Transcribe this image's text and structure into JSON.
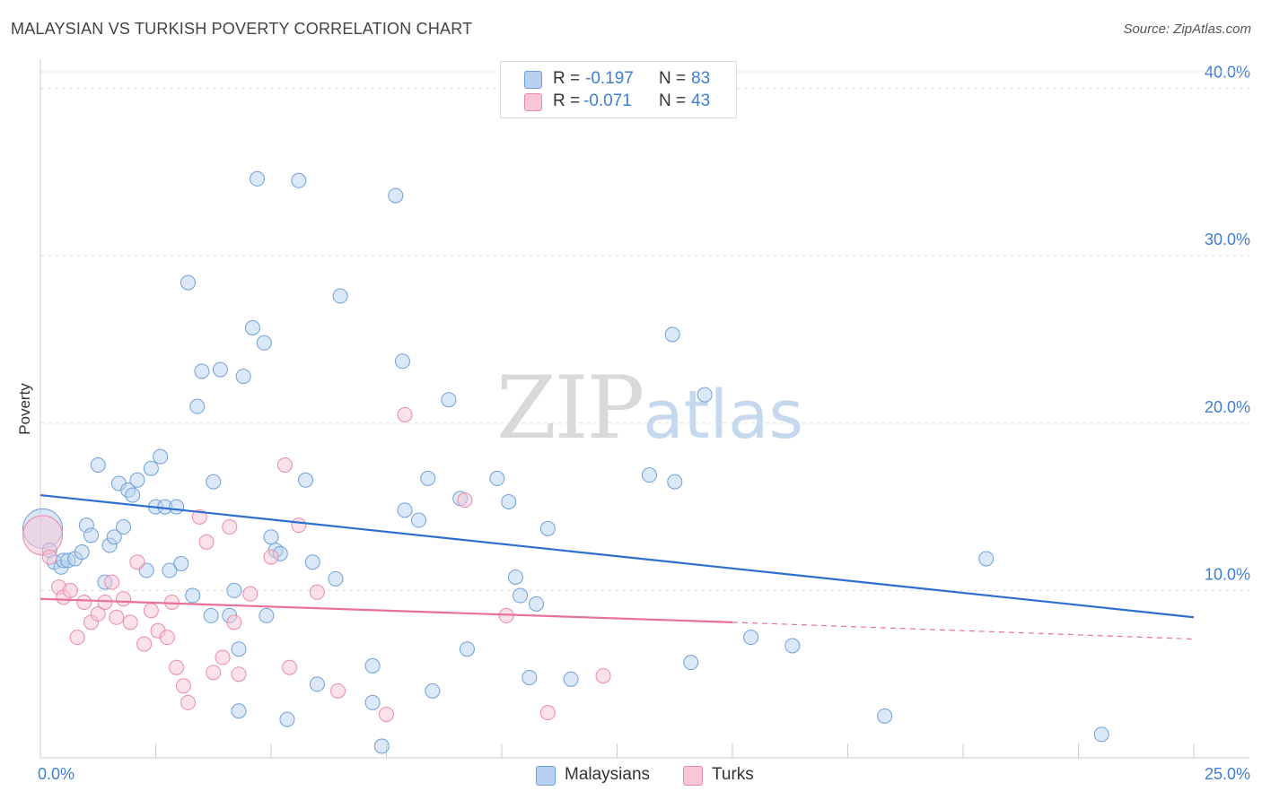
{
  "header": {
    "title": "MALAYSIAN VS TURKISH POVERTY CORRELATION CHART",
    "source": "Source: ZipAtlas.com"
  },
  "watermark": {
    "zip": "ZIP",
    "atlas": "atlas"
  },
  "legend": {
    "rows": [
      {
        "r_label": "R =",
        "r_value": "-0.197",
        "n_label": "N =",
        "n_value": "83",
        "series": "Malaysians"
      },
      {
        "r_label": "R =",
        "r_value": "-0.071",
        "n_label": "N =",
        "n_value": "43",
        "series": "Turks"
      }
    ]
  },
  "bottom_legend": {
    "items": [
      "Malaysians",
      "Turks"
    ]
  },
  "colors": {
    "blue_fill": "#b8d1f0",
    "blue_edge": "#6f9fd8",
    "blue_line": "#2d6fd0",
    "pink_fill": "#f8c6d6",
    "pink_edge": "#eb8aa8",
    "pink_line": "#e8709b",
    "grid": "#dddddd",
    "tick_text": "#3f7ed4"
  },
  "chart_data": {
    "type": "scatter",
    "title": "MALAYSIAN VS TURKISH POVERTY CORRELATION CHART",
    "xlabel": "",
    "ylabel": "Poverty",
    "xlim": [
      0,
      25
    ],
    "ylim": [
      0,
      41
    ],
    "x_tick_labels": [
      {
        "value": 0,
        "label": "0.0%"
      },
      {
        "value": 25,
        "label": "25.0%"
      }
    ],
    "y_tick_labels": [
      {
        "value": 10,
        "label": "10.0%"
      },
      {
        "value": 20,
        "label": "20.0%"
      },
      {
        "value": 30,
        "label": "30.0%"
      },
      {
        "value": 40,
        "label": "40.0%"
      }
    ],
    "series": [
      {
        "name": "Malaysians",
        "color": "#6f9fd8",
        "trend": {
          "x0": 0,
          "y0": 15.7,
          "x1": 25,
          "y1": 8.4
        },
        "points": [
          [
            0.05,
            13.7,
            "big"
          ],
          [
            0.2,
            12.4
          ],
          [
            0.3,
            11.7
          ],
          [
            0.45,
            11.4
          ],
          [
            0.5,
            11.8
          ],
          [
            0.6,
            11.8
          ],
          [
            0.75,
            11.9
          ],
          [
            0.9,
            12.3
          ],
          [
            1.0,
            13.9
          ],
          [
            1.1,
            13.3
          ],
          [
            1.25,
            17.5
          ],
          [
            1.4,
            10.5
          ],
          [
            1.5,
            12.7
          ],
          [
            1.6,
            13.2
          ],
          [
            1.7,
            16.4
          ],
          [
            1.8,
            13.8
          ],
          [
            1.9,
            16.0
          ],
          [
            2.0,
            15.7
          ],
          [
            2.1,
            16.6
          ],
          [
            2.3,
            11.2
          ],
          [
            2.4,
            17.3
          ],
          [
            2.5,
            15.0
          ],
          [
            2.6,
            18.0
          ],
          [
            2.7,
            15.0
          ],
          [
            2.8,
            11.2
          ],
          [
            2.95,
            15.0
          ],
          [
            3.05,
            11.6
          ],
          [
            3.2,
            28.4
          ],
          [
            3.3,
            9.7
          ],
          [
            3.4,
            21.0
          ],
          [
            3.5,
            23.1
          ],
          [
            3.7,
            8.5
          ],
          [
            3.75,
            16.5
          ],
          [
            3.9,
            23.2
          ],
          [
            4.1,
            8.5
          ],
          [
            4.2,
            10.0
          ],
          [
            4.3,
            6.5
          ],
          [
            4.3,
            2.8
          ],
          [
            4.4,
            22.8
          ],
          [
            4.6,
            25.7
          ],
          [
            4.7,
            34.6
          ],
          [
            4.85,
            24.8
          ],
          [
            4.9,
            8.5
          ],
          [
            5.0,
            13.2
          ],
          [
            5.1,
            12.4
          ],
          [
            5.2,
            12.2
          ],
          [
            5.35,
            2.3
          ],
          [
            5.6,
            34.5
          ],
          [
            5.75,
            16.6
          ],
          [
            5.9,
            11.7
          ],
          [
            6.0,
            4.4
          ],
          [
            6.4,
            10.7
          ],
          [
            6.5,
            27.6
          ],
          [
            7.2,
            5.5
          ],
          [
            7.2,
            3.3
          ],
          [
            7.4,
            0.7
          ],
          [
            7.7,
            33.6
          ],
          [
            7.85,
            23.7
          ],
          [
            7.9,
            14.8
          ],
          [
            8.2,
            14.2
          ],
          [
            8.5,
            4.0
          ],
          [
            8.4,
            16.7
          ],
          [
            8.85,
            21.4
          ],
          [
            9.1,
            15.5
          ],
          [
            9.25,
            6.5
          ],
          [
            9.9,
            16.7
          ],
          [
            10.15,
            15.3
          ],
          [
            10.3,
            10.8
          ],
          [
            10.4,
            9.7
          ],
          [
            10.6,
            4.8
          ],
          [
            10.75,
            9.2
          ],
          [
            11.0,
            13.7
          ],
          [
            11.5,
            4.7
          ],
          [
            13.2,
            16.9
          ],
          [
            13.7,
            25.3
          ],
          [
            13.75,
            16.5
          ],
          [
            14.1,
            5.7
          ],
          [
            14.4,
            21.7
          ],
          [
            15.4,
            7.2
          ],
          [
            16.3,
            6.7
          ],
          [
            18.3,
            2.5
          ],
          [
            20.5,
            11.9
          ],
          [
            23.0,
            1.4
          ]
        ]
      },
      {
        "name": "Turks",
        "color": "#eb8aa8",
        "trend": {
          "x0": 0,
          "y0": 9.5,
          "x1": 15.0,
          "y1": 8.1,
          "dash_x1": 25,
          "dash_y1": 7.1
        },
        "points": [
          [
            0.05,
            13.3,
            "big"
          ],
          [
            0.2,
            12.0
          ],
          [
            0.4,
            10.2
          ],
          [
            0.5,
            9.6
          ],
          [
            0.65,
            10.0
          ],
          [
            0.8,
            7.2
          ],
          [
            0.95,
            9.3
          ],
          [
            1.1,
            8.1
          ],
          [
            1.25,
            8.6
          ],
          [
            1.4,
            9.3
          ],
          [
            1.55,
            10.5
          ],
          [
            1.65,
            8.4
          ],
          [
            1.8,
            9.5
          ],
          [
            1.95,
            8.1
          ],
          [
            2.1,
            11.7
          ],
          [
            2.25,
            6.8
          ],
          [
            2.4,
            8.8
          ],
          [
            2.55,
            7.6
          ],
          [
            2.75,
            7.2
          ],
          [
            2.85,
            9.3
          ],
          [
            2.95,
            5.4
          ],
          [
            3.1,
            4.3
          ],
          [
            3.2,
            3.3
          ],
          [
            3.45,
            14.4
          ],
          [
            3.6,
            12.9
          ],
          [
            3.75,
            5.1
          ],
          [
            3.95,
            6.0
          ],
          [
            4.1,
            13.8
          ],
          [
            4.2,
            8.1
          ],
          [
            4.3,
            5.0
          ],
          [
            4.55,
            9.8
          ],
          [
            5.0,
            12.0
          ],
          [
            5.3,
            17.5
          ],
          [
            5.4,
            5.4
          ],
          [
            5.6,
            13.9
          ],
          [
            6.0,
            9.9
          ],
          [
            6.45,
            4.0
          ],
          [
            7.5,
            2.6
          ],
          [
            7.9,
            20.5
          ],
          [
            9.2,
            15.4
          ],
          [
            10.1,
            8.5
          ],
          [
            11.0,
            2.7
          ],
          [
            12.2,
            4.9
          ]
        ]
      }
    ]
  }
}
